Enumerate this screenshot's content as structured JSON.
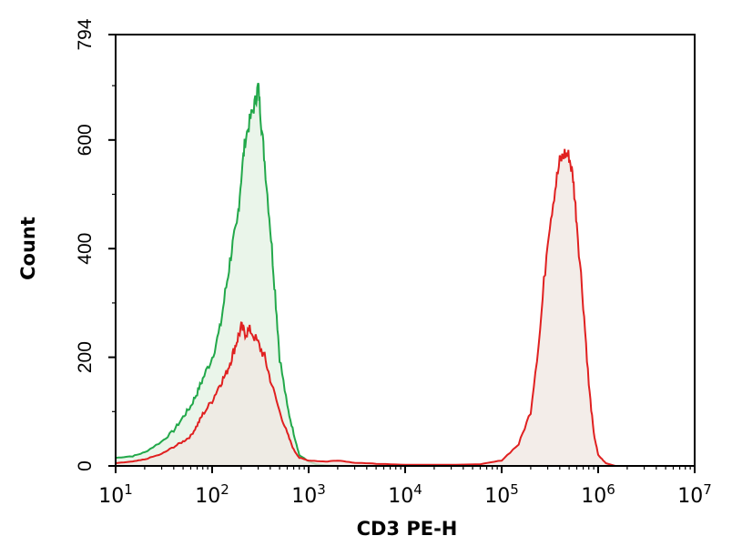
{
  "chart_data": {
    "type": "area",
    "title": "",
    "xlabel": "CD3 PE-H",
    "ylabel": "Count",
    "x_scale": "log",
    "xlim": [
      10,
      10000000
    ],
    "ylim": [
      0,
      794
    ],
    "x_ticks": [
      {
        "base": "10",
        "exp": "1",
        "value": 10
      },
      {
        "base": "10",
        "exp": "2",
        "value": 100
      },
      {
        "base": "10",
        "exp": "3",
        "value": 1000
      },
      {
        "base": "10",
        "exp": "4",
        "value": 10000
      },
      {
        "base": "10",
        "exp": "5",
        "value": 100000
      },
      {
        "base": "10",
        "exp": "6",
        "value": 1000000
      },
      {
        "base": "10",
        "exp": "7",
        "value": 10000000
      }
    ],
    "y_ticks": [
      {
        "label": "0",
        "value": 0
      },
      {
        "label": "200",
        "value": 200
      },
      {
        "label": "400",
        "value": 400
      },
      {
        "label": "600",
        "value": 600
      },
      {
        "label": "794",
        "value": 794
      }
    ],
    "grid": false,
    "series": [
      {
        "color": "#22a84a",
        "fill": "#e6f3e6",
        "points": [
          [
            10,
            15
          ],
          [
            15,
            18
          ],
          [
            20,
            25
          ],
          [
            30,
            45
          ],
          [
            40,
            65
          ],
          [
            50,
            90
          ],
          [
            60,
            110
          ],
          [
            70,
            135
          ],
          [
            80,
            160
          ],
          [
            100,
            200
          ],
          [
            120,
            250
          ],
          [
            140,
            330
          ],
          [
            160,
            400
          ],
          [
            180,
            440
          ],
          [
            200,
            530
          ],
          [
            220,
            600
          ],
          [
            250,
            640
          ],
          [
            280,
            670
          ],
          [
            300,
            700
          ],
          [
            320,
            640
          ],
          [
            350,
            560
          ],
          [
            400,
            440
          ],
          [
            450,
            320
          ],
          [
            500,
            200
          ],
          [
            600,
            110
          ],
          [
            700,
            60
          ],
          [
            800,
            20
          ],
          [
            1000,
            8
          ],
          [
            1200,
            3
          ],
          [
            1500,
            1
          ],
          [
            2000,
            0
          ]
        ]
      },
      {
        "color": "#e02020",
        "fill": "#efe7e2",
        "points": [
          [
            10,
            5
          ],
          [
            15,
            8
          ],
          [
            20,
            12
          ],
          [
            30,
            22
          ],
          [
            40,
            35
          ],
          [
            50,
            45
          ],
          [
            60,
            55
          ],
          [
            70,
            75
          ],
          [
            80,
            95
          ],
          [
            100,
            120
          ],
          [
            120,
            150
          ],
          [
            140,
            170
          ],
          [
            160,
            200
          ],
          [
            180,
            230
          ],
          [
            200,
            255
          ],
          [
            220,
            245
          ],
          [
            250,
            250
          ],
          [
            300,
            225
          ],
          [
            350,
            200
          ],
          [
            400,
            160
          ],
          [
            500,
            100
          ],
          [
            600,
            60
          ],
          [
            700,
            30
          ],
          [
            800,
            15
          ],
          [
            1000,
            10
          ],
          [
            1500,
            8
          ],
          [
            2000,
            10
          ],
          [
            3000,
            6
          ],
          [
            5000,
            4
          ],
          [
            10000,
            2
          ],
          [
            30000,
            2
          ],
          [
            60000,
            3
          ],
          [
            100000,
            10
          ],
          [
            150000,
            40
          ],
          [
            200000,
            100
          ],
          [
            250000,
            250
          ],
          [
            300000,
            420
          ],
          [
            350000,
            500
          ],
          [
            400000,
            560
          ],
          [
            450000,
            575
          ],
          [
            500000,
            570
          ],
          [
            550000,
            530
          ],
          [
            600000,
            450
          ],
          [
            700000,
            300
          ],
          [
            800000,
            150
          ],
          [
            900000,
            60
          ],
          [
            1000000,
            20
          ],
          [
            1200000,
            5
          ],
          [
            1500000,
            0
          ]
        ]
      }
    ]
  }
}
